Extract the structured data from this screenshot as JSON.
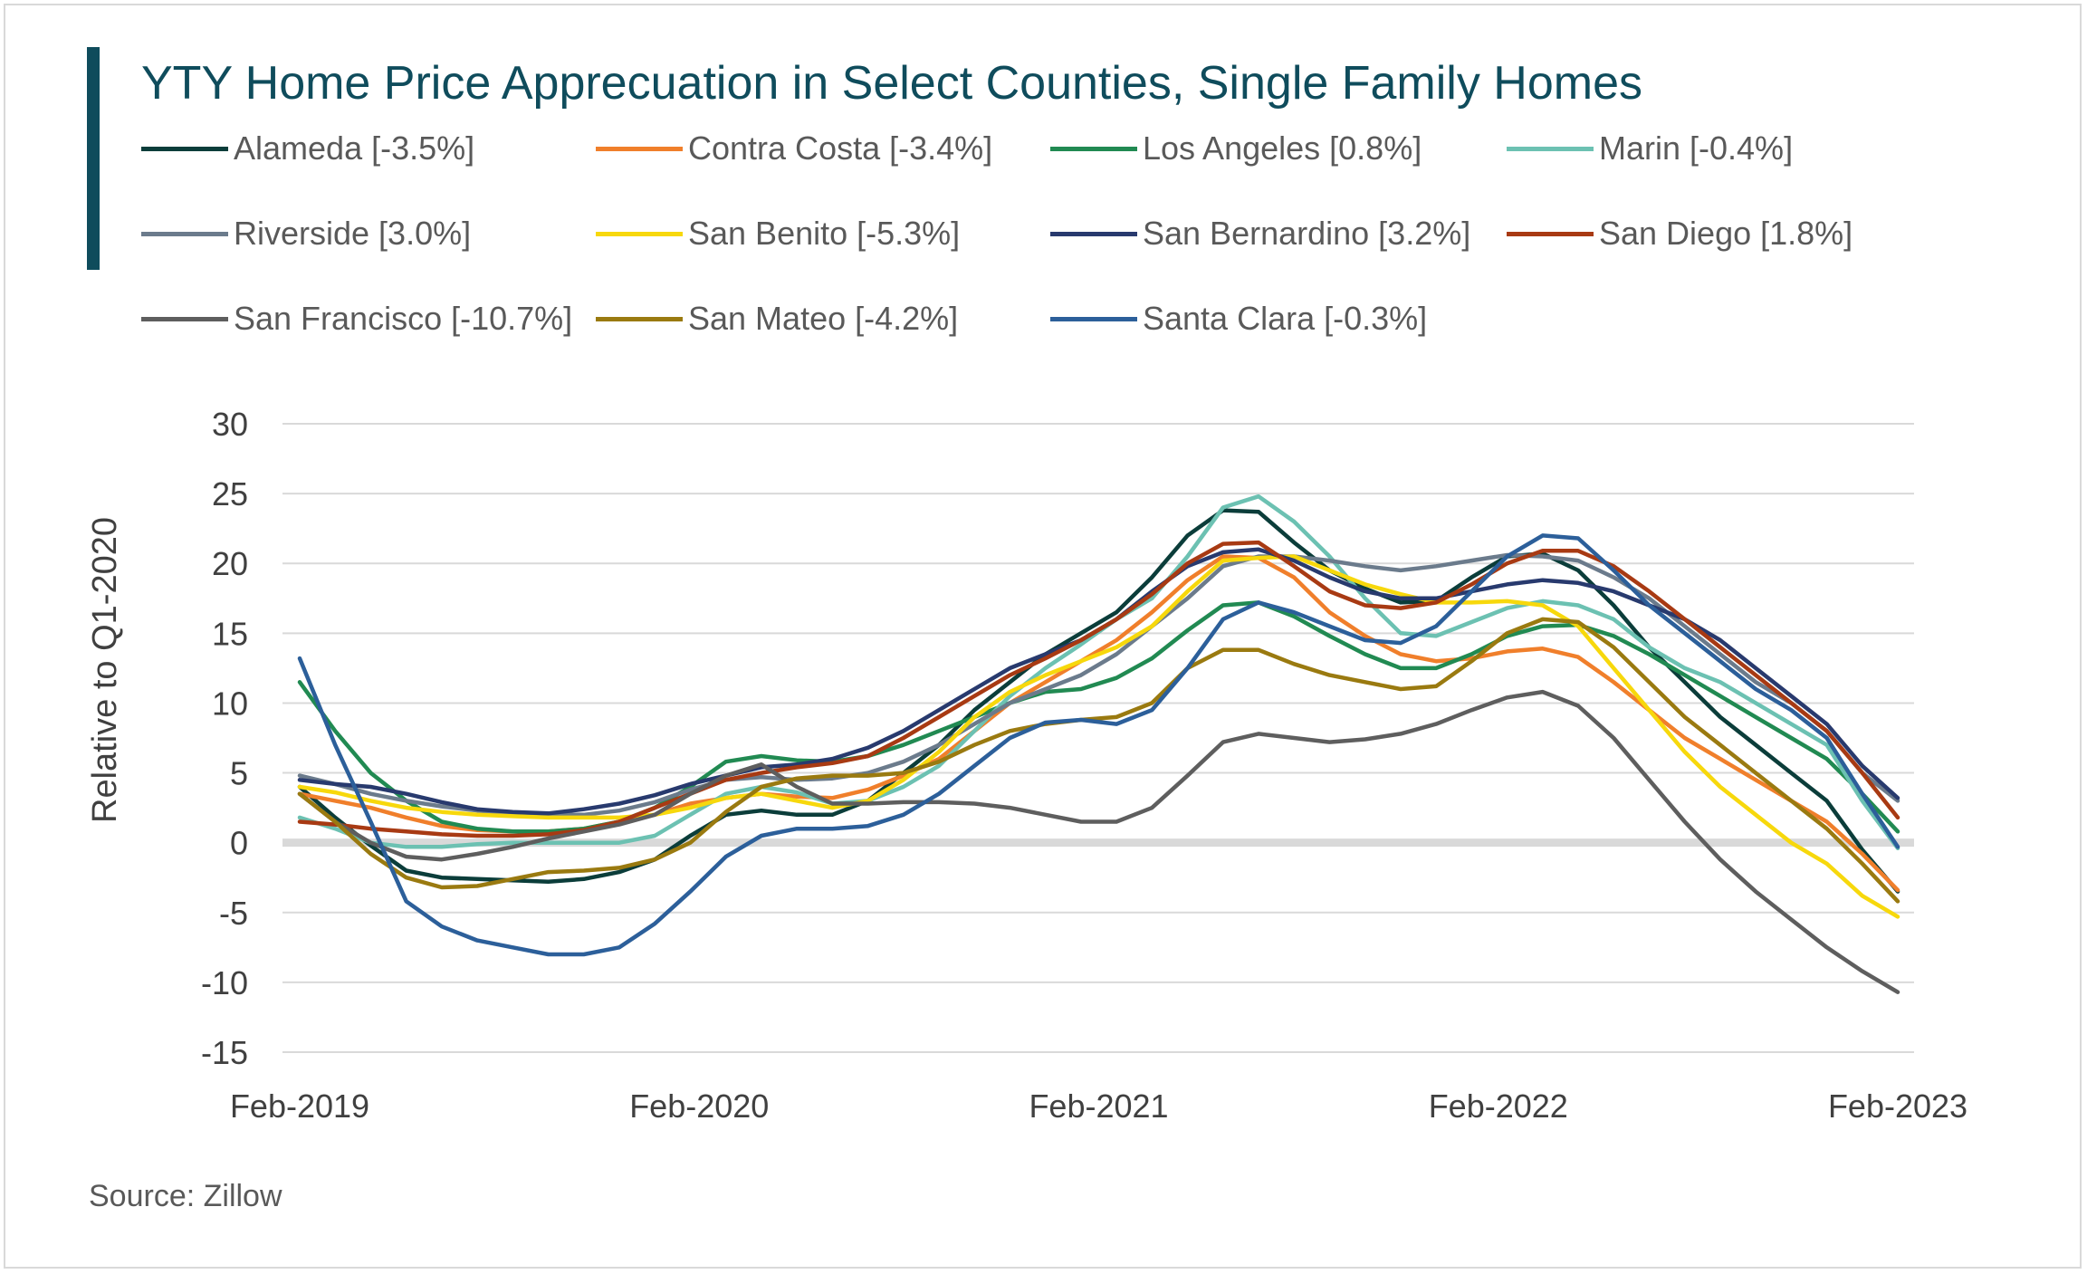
{
  "chart_data": {
    "type": "line",
    "title": "YTY Home Price Apprecuation in Select Counties, Single Family Homes",
    "ylabel": "Relative to Q1-2020",
    "xlabel": "",
    "ylim": [
      -15,
      30
    ],
    "yticks": [
      "30",
      "25",
      "20",
      "15",
      "10",
      "5",
      "0",
      "-5",
      "-10",
      "-15"
    ],
    "ytick_values": [
      30,
      25,
      20,
      15,
      10,
      5,
      0,
      -5,
      -10,
      -15
    ],
    "xtick_labels": [
      "Feb-2019",
      "Feb-2020",
      "Feb-2021",
      "Feb-2022",
      "Feb-2023"
    ],
    "x_start": "Feb-2019",
    "x_end": "Feb-2023",
    "grid": "horizontal",
    "source": "Source: Zillow",
    "accent_color": "#0f4c5c",
    "series": [
      {
        "name": "Alameda [-3.5%]",
        "color": "#0b3d3a",
        "values": [
          4.0,
          1.8,
          -0.2,
          -2.0,
          -2.5,
          -2.6,
          -2.7,
          -2.8,
          -2.6,
          -2.1,
          -1.2,
          0.5,
          2.0,
          2.3,
          2.0,
          2.0,
          3.0,
          5.0,
          7.0,
          9.5,
          11.5,
          13.5,
          15.0,
          16.5,
          19.0,
          22.0,
          23.8,
          23.7,
          21.5,
          19.5,
          18.2,
          17.2,
          17.3,
          19.0,
          20.5,
          20.7,
          19.5,
          17.0,
          14.0,
          11.5,
          9.0,
          7.0,
          5.0,
          3.0,
          -0.5,
          -3.5
        ]
      },
      {
        "name": "Contra Costa [-3.4%]",
        "color": "#f07f2b",
        "values": [
          3.5,
          3.0,
          2.5,
          1.8,
          1.2,
          0.9,
          0.8,
          0.8,
          1.0,
          1.5,
          2.0,
          2.8,
          3.2,
          3.5,
          3.3,
          3.2,
          3.8,
          4.8,
          6.0,
          8.0,
          10.0,
          11.5,
          13.0,
          14.5,
          16.5,
          18.8,
          20.5,
          20.4,
          19.0,
          16.5,
          14.8,
          13.5,
          13.0,
          13.2,
          13.7,
          13.9,
          13.3,
          11.5,
          9.5,
          7.5,
          6.0,
          4.5,
          3.0,
          1.5,
          -0.8,
          -3.4
        ]
      },
      {
        "name": "Los Angeles [0.8%]",
        "color": "#218a52",
        "values": [
          11.5,
          8.0,
          5.0,
          3.0,
          1.5,
          1.0,
          0.8,
          0.8,
          1.0,
          1.5,
          2.5,
          4.0,
          5.8,
          6.2,
          5.9,
          5.8,
          6.2,
          7.0,
          8.0,
          9.0,
          10.0,
          10.8,
          11.0,
          11.8,
          13.2,
          15.2,
          17.0,
          17.2,
          16.2,
          14.8,
          13.5,
          12.5,
          12.5,
          13.5,
          14.8,
          15.5,
          15.6,
          14.8,
          13.5,
          12.0,
          10.5,
          9.0,
          7.5,
          6.0,
          3.5,
          0.8
        ]
      },
      {
        "name": "Marin [-0.4%]",
        "color": "#6cc1b2",
        "values": [
          1.8,
          1.0,
          0.0,
          -0.3,
          -0.3,
          -0.1,
          0.0,
          0.0,
          0.0,
          0.0,
          0.5,
          2.0,
          3.5,
          4.0,
          3.6,
          2.8,
          3.0,
          4.0,
          5.5,
          8.0,
          10.5,
          12.5,
          14.2,
          16.0,
          17.5,
          20.5,
          24.0,
          24.8,
          23.0,
          20.5,
          17.5,
          15.0,
          14.8,
          15.8,
          16.8,
          17.3,
          17.0,
          16.0,
          14.0,
          12.5,
          11.5,
          10.0,
          8.5,
          7.0,
          3.0,
          -0.4
        ]
      },
      {
        "name": "Riverside [3.0%]",
        "color": "#6b7b8c",
        "values": [
          4.8,
          4.2,
          3.5,
          3.0,
          2.6,
          2.3,
          2.1,
          2.0,
          2.0,
          2.3,
          2.9,
          3.8,
          4.5,
          4.7,
          4.5,
          4.6,
          5.0,
          5.8,
          7.0,
          8.5,
          10.0,
          11.0,
          12.0,
          13.5,
          15.5,
          17.5,
          19.8,
          20.5,
          20.5,
          20.2,
          19.8,
          19.5,
          19.8,
          20.2,
          20.6,
          20.5,
          20.2,
          19.0,
          17.5,
          15.5,
          13.5,
          11.5,
          10.0,
          8.0,
          5.0,
          3.0
        ]
      },
      {
        "name": "San Benito [-5.3%]",
        "color": "#f7d80c",
        "values": [
          4.0,
          3.6,
          3.0,
          2.5,
          2.2,
          2.0,
          1.9,
          1.8,
          1.8,
          1.8,
          2.0,
          2.5,
          3.2,
          3.5,
          3.0,
          2.5,
          3.0,
          4.5,
          6.5,
          9.0,
          10.8,
          12.0,
          13.0,
          14.0,
          15.5,
          18.0,
          20.2,
          20.4,
          20.5,
          19.5,
          18.5,
          17.8,
          17.2,
          17.2,
          17.3,
          17.0,
          15.5,
          12.5,
          9.5,
          6.5,
          4.0,
          2.0,
          0.0,
          -1.5,
          -3.8,
          -5.3
        ]
      },
      {
        "name": "San Bernardino [3.2%]",
        "color": "#283a6e",
        "values": [
          4.5,
          4.2,
          4.0,
          3.5,
          2.9,
          2.4,
          2.2,
          2.1,
          2.4,
          2.8,
          3.4,
          4.2,
          4.8,
          5.4,
          5.6,
          6.0,
          6.8,
          8.0,
          9.5,
          11.0,
          12.5,
          13.5,
          14.5,
          16.0,
          18.0,
          19.8,
          20.8,
          21.0,
          20.2,
          19.0,
          18.0,
          17.5,
          17.5,
          18.0,
          18.5,
          18.8,
          18.6,
          18.0,
          17.0,
          16.0,
          14.5,
          12.5,
          10.5,
          8.5,
          5.5,
          3.2
        ]
      },
      {
        "name": "San Diego [1.8%]",
        "color": "#a83a13",
        "values": [
          1.5,
          1.3,
          1.0,
          0.8,
          0.6,
          0.5,
          0.5,
          0.6,
          0.9,
          1.5,
          2.5,
          3.5,
          4.5,
          5.0,
          5.4,
          5.7,
          6.2,
          7.5,
          9.0,
          10.5,
          12.0,
          13.2,
          14.5,
          16.0,
          17.8,
          20.0,
          21.4,
          21.5,
          19.8,
          18.0,
          17.0,
          16.8,
          17.2,
          18.5,
          20.0,
          20.9,
          20.9,
          19.8,
          18.0,
          16.0,
          14.0,
          12.0,
          10.0,
          8.0,
          5.0,
          1.8
        ]
      },
      {
        "name": "San Francisco [-10.7%]",
        "color": "#5e5e5e",
        "values": [
          3.5,
          1.5,
          0.0,
          -1.0,
          -1.2,
          -0.8,
          -0.3,
          0.3,
          0.8,
          1.3,
          2.0,
          3.5,
          4.8,
          5.6,
          4.0,
          2.8,
          2.8,
          2.9,
          2.9,
          2.8,
          2.5,
          2.0,
          1.5,
          1.5,
          2.5,
          4.8,
          7.2,
          7.8,
          7.5,
          7.2,
          7.4,
          7.8,
          8.5,
          9.5,
          10.4,
          10.8,
          9.8,
          7.5,
          4.5,
          1.5,
          -1.2,
          -3.5,
          -5.5,
          -7.5,
          -9.2,
          -10.7
        ]
      },
      {
        "name": "San Mateo [-4.2%]",
        "color": "#9a7a10",
        "values": [
          3.5,
          1.5,
          -0.8,
          -2.5,
          -3.2,
          -3.1,
          -2.6,
          -2.1,
          -2.0,
          -1.8,
          -1.2,
          0.0,
          2.2,
          4.0,
          4.6,
          4.8,
          4.8,
          5.0,
          5.8,
          7.0,
          8.0,
          8.5,
          8.8,
          9.0,
          10.0,
          12.5,
          13.8,
          13.8,
          12.8,
          12.0,
          11.5,
          11.0,
          11.2,
          13.0,
          15.0,
          16.0,
          15.8,
          14.0,
          11.5,
          9.0,
          7.0,
          5.0,
          3.0,
          1.0,
          -1.5,
          -4.2
        ]
      },
      {
        "name": "Santa Clara [-0.3%]",
        "color": "#2c5f9a",
        "values": [
          13.2,
          7.0,
          1.5,
          -4.2,
          -6.0,
          -7.0,
          -7.5,
          -8.0,
          -8.0,
          -7.5,
          -5.8,
          -3.5,
          -1.0,
          0.5,
          1.0,
          1.0,
          1.2,
          2.0,
          3.5,
          5.5,
          7.5,
          8.6,
          8.8,
          8.5,
          9.5,
          12.5,
          16.0,
          17.2,
          16.5,
          15.5,
          14.5,
          14.3,
          15.5,
          18.0,
          20.5,
          22.0,
          21.8,
          19.5,
          17.0,
          15.0,
          13.0,
          11.0,
          9.5,
          7.5,
          3.5,
          -0.3
        ]
      }
    ]
  }
}
